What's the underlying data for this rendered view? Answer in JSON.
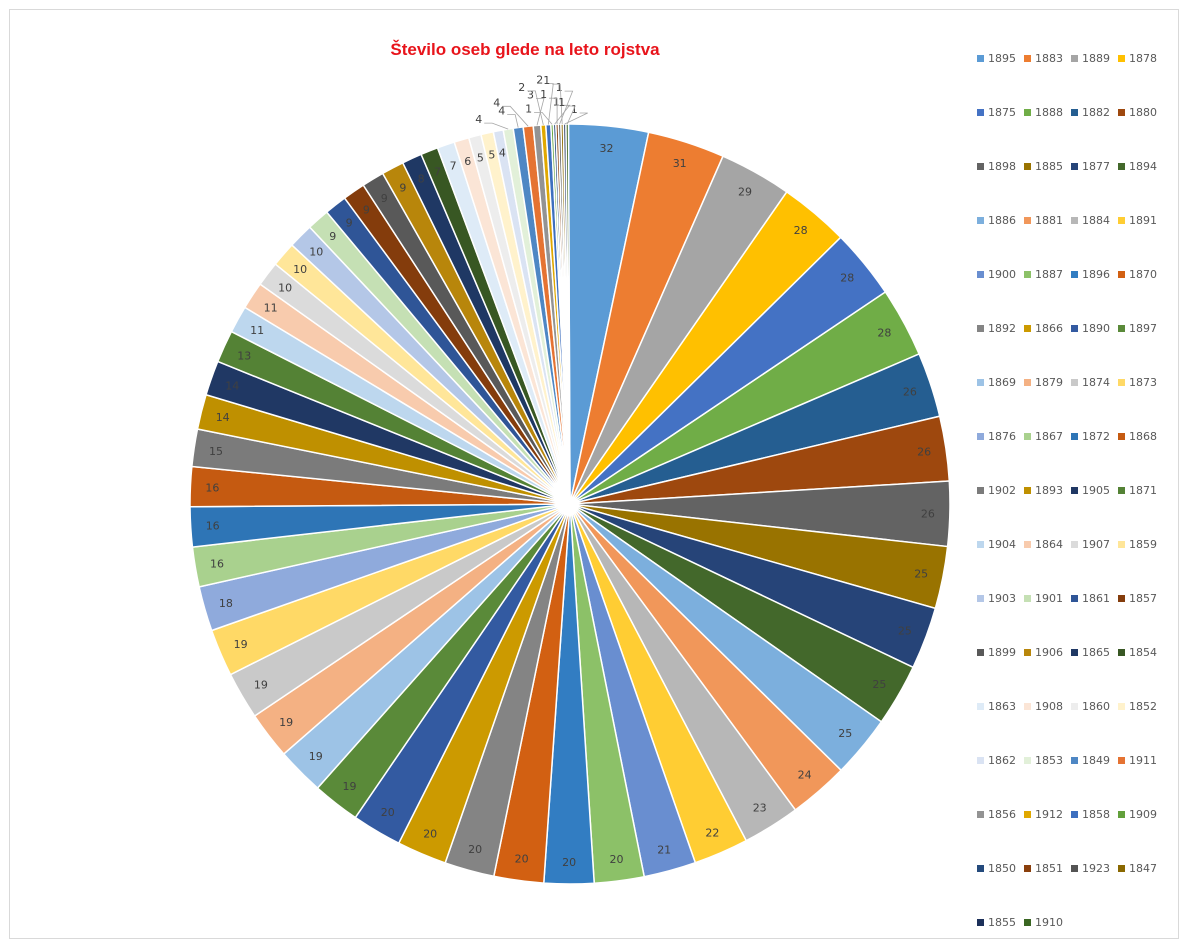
{
  "chart_data": {
    "type": "pie",
    "title": "Število oseb glede na leto rojstva",
    "legend_position": "right",
    "categories": [
      "1895",
      "1883",
      "1889",
      "1878",
      "1875",
      "1888",
      "1882",
      "1880",
      "1898",
      "1885",
      "1877",
      "1894",
      "1886",
      "1881",
      "1884",
      "1891",
      "1900",
      "1887",
      "1896",
      "1870",
      "1892",
      "1866",
      "1890",
      "1897",
      "1869",
      "1879",
      "1874",
      "1873",
      "1876",
      "1867",
      "1872",
      "1868",
      "1902",
      "1893",
      "1905",
      "1871",
      "1904",
      "1864",
      "1907",
      "1859",
      "1903",
      "1901",
      "1861",
      "1857",
      "1899",
      "1906",
      "1865",
      "1854",
      "1863",
      "1908",
      "1860",
      "1852",
      "1862",
      "1853",
      "1849",
      "1911",
      "1856",
      "1912",
      "1858",
      "1909",
      "1850",
      "1851",
      "1923",
      "1847",
      "1855",
      "1910"
    ],
    "values": [
      32,
      31,
      29,
      28,
      28,
      28,
      26,
      26,
      26,
      25,
      25,
      25,
      25,
      24,
      23,
      22,
      21,
      20,
      20,
      20,
      20,
      20,
      20,
      19,
      19,
      19,
      19,
      19,
      18,
      16,
      16,
      16,
      15,
      14,
      14,
      13,
      11,
      11,
      10,
      10,
      10,
      9,
      9,
      9,
      9,
      9,
      8,
      7,
      7,
      6,
      5,
      5,
      4,
      4,
      4,
      4,
      3,
      2,
      2,
      1,
      1,
      1,
      1,
      1,
      1,
      1
    ],
    "data_labels": [
      "32",
      "31",
      "29",
      "28",
      "28",
      "28",
      "26",
      "26",
      "26",
      "25",
      "25",
      "25",
      "25",
      "24",
      "23",
      "22",
      "21",
      "20",
      "20",
      "20",
      "20",
      "20",
      "20",
      "19",
      "19",
      "19",
      "19",
      "19",
      "18",
      "16",
      "16",
      "16",
      "15",
      "14",
      "14",
      "13",
      "11",
      "11",
      "10",
      "10",
      "10",
      "9",
      "9",
      "9",
      "9",
      "9",
      "8",
      "7",
      "7",
      "6",
      "5",
      "5",
      "4",
      "4",
      "4",
      "4",
      "3",
      "2",
      "2",
      "1",
      "1",
      "1",
      "1",
      "1",
      "1",
      "1"
    ],
    "colors": [
      "#5b9bd5",
      "#ed7d31",
      "#a5a5a5",
      "#ffc000",
      "#4472c4",
      "#70ad47",
      "#255e91",
      "#9e480e",
      "#636363",
      "#997300",
      "#264478",
      "#43682b",
      "#7cafdd",
      "#f1975a",
      "#b7b7b7",
      "#ffcd33",
      "#698ed0",
      "#8cc168",
      "#327dc2",
      "#d26012",
      "#848484",
      "#cc9a00",
      "#335aa1",
      "#5a8a39",
      "#9dc3e6",
      "#f4b183",
      "#c9c9c9",
      "#ffd966",
      "#8faadc",
      "#a9d18e",
      "#2e75b6",
      "#c55a11",
      "#7b7b7b",
      "#bf9000",
      "#203864",
      "#548235",
      "#bdd7ee",
      "#f8cbad",
      "#dbdbdb",
      "#ffe699",
      "#b4c7e7",
      "#c5e0b4",
      "#2f5597",
      "#843c0c",
      "#595959",
      "#b8860b",
      "#1f3864",
      "#385723",
      "#deebf7",
      "#fbe5d6",
      "#ededed",
      "#fff2cc",
      "#dae3f3",
      "#e2f0d9",
      "#4e87c4",
      "#e57332",
      "#939393",
      "#e0a800",
      "#3d6fbf",
      "#62a03b",
      "#244a7c",
      "#8a3f0c",
      "#545454",
      "#8a6800",
      "#1c305a",
      "#3a6622"
    ]
  }
}
